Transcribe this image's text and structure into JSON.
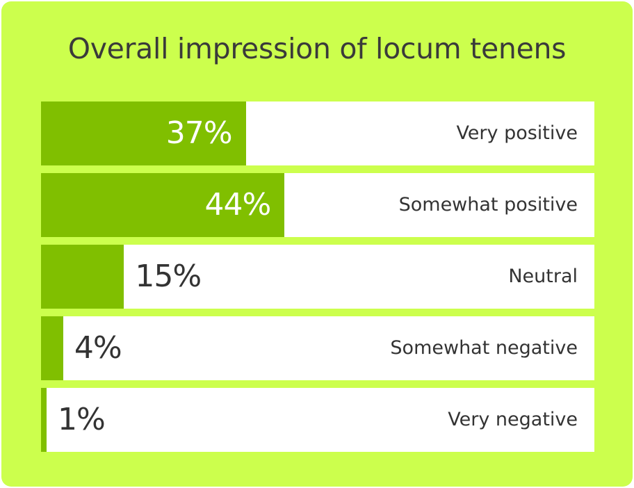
{
  "chart_data": {
    "type": "bar",
    "orientation": "horizontal",
    "title": "Overall impression of locum tenens",
    "categories": [
      "Very positive",
      "Somewhat positive",
      "Neutral",
      "Somewhat negative",
      "Very negative"
    ],
    "values": [
      37,
      44,
      15,
      4,
      1
    ],
    "value_labels": [
      "37%",
      "44%",
      "15%",
      "4%",
      "1%"
    ],
    "unit": "%",
    "xlim": [
      0,
      100
    ],
    "grid": false,
    "legend": "none",
    "colors": {
      "background": "#ccff4d",
      "bar": "#80bf00",
      "track": "#ffffff",
      "text": "#333333"
    }
  }
}
